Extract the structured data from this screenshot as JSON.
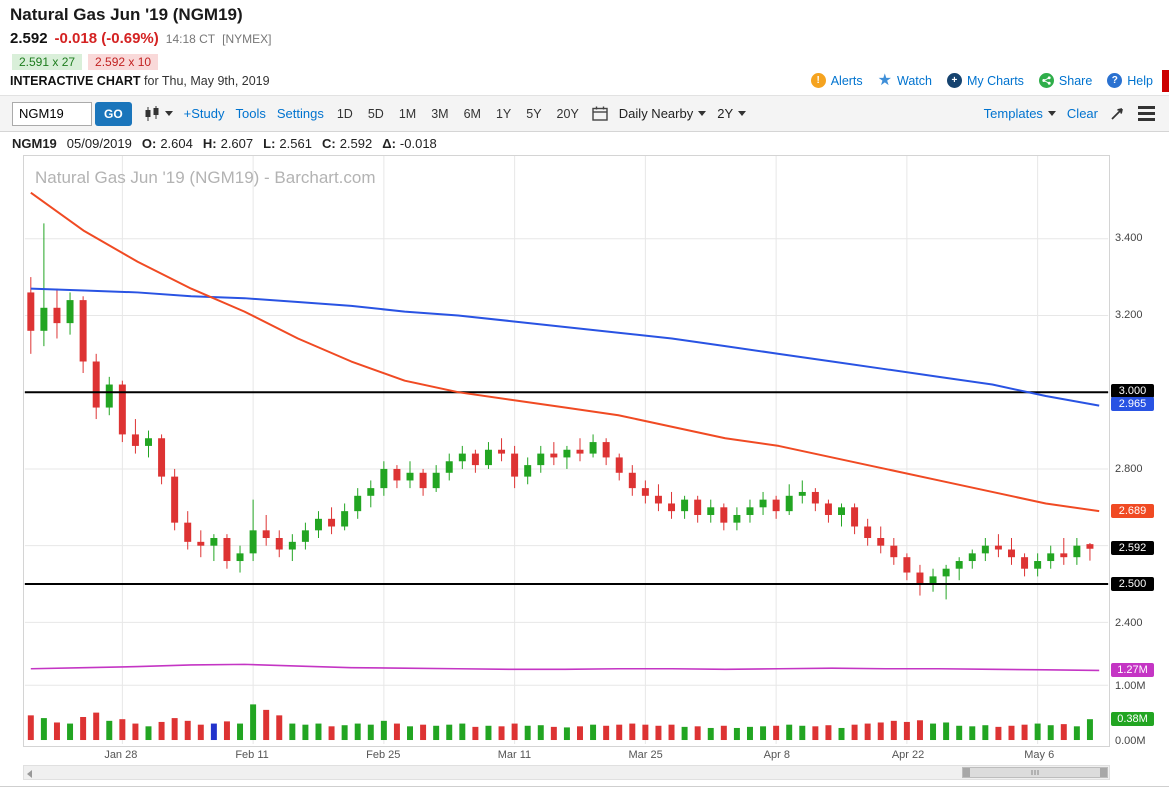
{
  "header": {
    "title": "Natural Gas Jun '19 (NGM19)",
    "last_price": "2.592",
    "change": "-0.018 (-0.69%)",
    "time": "14:18 CT",
    "exchange": "[NYMEX]",
    "bid": "2.591 x 27",
    "ask": "2.592 x 10",
    "chart_label": "INTERACTIVE CHART",
    "chart_date": " for Thu, May 9th, 2019",
    "links": [
      {
        "label": "Alerts",
        "icon": "alert-icon",
        "glyph": "!"
      },
      {
        "label": "Watch",
        "icon": "star-icon",
        "glyph": "★"
      },
      {
        "label": "My Charts",
        "icon": "plus-circle-icon",
        "glyph": "+"
      },
      {
        "label": "Share",
        "icon": "share-icon",
        "glyph": ""
      },
      {
        "label": "Help",
        "icon": "help-icon",
        "glyph": "?"
      }
    ]
  },
  "toolbar": {
    "symbol_value": "NGM19",
    "go_label": "GO",
    "links": [
      "+Study",
      "Tools",
      "Settings"
    ],
    "periods": [
      "1D",
      "5D",
      "1M",
      "3M",
      "6M",
      "1Y",
      "5Y",
      "20Y"
    ],
    "frequency": "Daily Nearby",
    "range": "2Y",
    "templates_label": "Templates",
    "clear_label": "Clear"
  },
  "quote_bar": {
    "symbol": "NGM19",
    "date": "05/09/2019",
    "fields": [
      {
        "label": "O:",
        "value": "2.604"
      },
      {
        "label": "H:",
        "value": "2.607"
      },
      {
        "label": "L:",
        "value": "2.561"
      },
      {
        "label": "C:",
        "value": "2.592"
      },
      {
        "label": "Δ:",
        "value": "-0.018"
      }
    ]
  },
  "chart_data": {
    "type": "candlestick",
    "title": "Natural Gas Jun '19 (NGM19) - Barchart.com",
    "symbol": "NGM19",
    "price_axis_range": [
      2.35,
      3.62
    ],
    "volume_axis_range_m": [
      0,
      1.6
    ],
    "price_axis_gridlines": [
      3.4,
      3.2,
      3.0,
      2.8,
      2.6,
      2.4
    ],
    "support_lines": [
      3.0,
      2.5
    ],
    "x_ticks": [
      {
        "label": "Jan 28",
        "index": 7
      },
      {
        "label": "Feb 11",
        "index": 17
      },
      {
        "label": "Feb 25",
        "index": 27
      },
      {
        "label": "Mar 11",
        "index": 37
      },
      {
        "label": "Mar 25",
        "index": 47
      },
      {
        "label": "Apr 8",
        "index": 57
      },
      {
        "label": "Apr 22",
        "index": 67
      },
      {
        "label": "May 6",
        "index": 77
      }
    ],
    "y_ticks": [
      {
        "label": "3.400",
        "scale": "price",
        "value": 3.4
      },
      {
        "label": "3.200",
        "scale": "price",
        "value": 3.2
      },
      {
        "label": "2.800",
        "scale": "price",
        "value": 2.8
      },
      {
        "label": "2.400",
        "scale": "price",
        "value": 2.4
      },
      {
        "label": "1.00M",
        "scale": "volume",
        "value": 1.0
      },
      {
        "label": "0.00M",
        "scale": "volume",
        "value": 0.0
      }
    ],
    "badges": [
      {
        "label": "3.000",
        "scale": "price",
        "value": 3.0,
        "color": "#000000"
      },
      {
        "label": "2.965",
        "scale": "price",
        "value": 2.965,
        "color": "#2953e3"
      },
      {
        "label": "2.689",
        "scale": "price",
        "value": 2.689,
        "color": "#f04a23"
      },
      {
        "label": "2.592",
        "scale": "price",
        "value": 2.592,
        "color": "#000000"
      },
      {
        "label": "2.500",
        "scale": "price",
        "value": 2.5,
        "color": "#000000"
      },
      {
        "label": "1.27M",
        "scale": "volume",
        "value": 1.27,
        "color": "#c435c4"
      },
      {
        "label": "0.38M",
        "scale": "volume",
        "value": 0.38,
        "color": "#22a522"
      }
    ],
    "colors": {
      "up": "#22a522",
      "down": "#dd3333",
      "ma_red": "#f04a23",
      "ma_blue": "#2953e3",
      "open_interest": "#c435c4",
      "support": "#000000",
      "grid": "#e7e7e7"
    },
    "candles_ohlc": [
      [
        3.26,
        3.3,
        3.1,
        3.16
      ],
      [
        3.16,
        3.44,
        3.12,
        3.22
      ],
      [
        3.22,
        3.27,
        3.14,
        3.18
      ],
      [
        3.18,
        3.26,
        3.15,
        3.24
      ],
      [
        3.24,
        3.25,
        3.05,
        3.08
      ],
      [
        3.08,
        3.1,
        2.93,
        2.96
      ],
      [
        2.96,
        3.04,
        2.94,
        3.02
      ],
      [
        3.02,
        3.03,
        2.87,
        2.89
      ],
      [
        2.89,
        2.93,
        2.84,
        2.86
      ],
      [
        2.86,
        2.9,
        2.83,
        2.88
      ],
      [
        2.88,
        2.89,
        2.76,
        2.78
      ],
      [
        2.78,
        2.8,
        2.64,
        2.66
      ],
      [
        2.66,
        2.69,
        2.59,
        2.61
      ],
      [
        2.61,
        2.64,
        2.57,
        2.6
      ],
      [
        2.6,
        2.63,
        2.56,
        2.62
      ],
      [
        2.62,
        2.63,
        2.54,
        2.56
      ],
      [
        2.56,
        2.6,
        2.53,
        2.58
      ],
      [
        2.58,
        2.72,
        2.56,
        2.64
      ],
      [
        2.64,
        2.68,
        2.6,
        2.62
      ],
      [
        2.62,
        2.64,
        2.57,
        2.59
      ],
      [
        2.59,
        2.63,
        2.56,
        2.61
      ],
      [
        2.61,
        2.66,
        2.59,
        2.64
      ],
      [
        2.64,
        2.69,
        2.62,
        2.67
      ],
      [
        2.67,
        2.7,
        2.63,
        2.65
      ],
      [
        2.65,
        2.71,
        2.64,
        2.69
      ],
      [
        2.69,
        2.75,
        2.67,
        2.73
      ],
      [
        2.73,
        2.77,
        2.7,
        2.75
      ],
      [
        2.75,
        2.82,
        2.73,
        2.8
      ],
      [
        2.8,
        2.81,
        2.75,
        2.77
      ],
      [
        2.77,
        2.82,
        2.75,
        2.79
      ],
      [
        2.79,
        2.8,
        2.73,
        2.75
      ],
      [
        2.75,
        2.81,
        2.74,
        2.79
      ],
      [
        2.79,
        2.84,
        2.77,
        2.82
      ],
      [
        2.82,
        2.86,
        2.8,
        2.84
      ],
      [
        2.84,
        2.85,
        2.79,
        2.81
      ],
      [
        2.81,
        2.87,
        2.8,
        2.85
      ],
      [
        2.85,
        2.88,
        2.82,
        2.84
      ],
      [
        2.84,
        2.86,
        2.75,
        2.78
      ],
      [
        2.78,
        2.83,
        2.76,
        2.81
      ],
      [
        2.81,
        2.86,
        2.79,
        2.84
      ],
      [
        2.84,
        2.87,
        2.81,
        2.83
      ],
      [
        2.83,
        2.86,
        2.8,
        2.85
      ],
      [
        2.85,
        2.88,
        2.82,
        2.84
      ],
      [
        2.84,
        2.89,
        2.83,
        2.87
      ],
      [
        2.87,
        2.88,
        2.81,
        2.83
      ],
      [
        2.83,
        2.84,
        2.77,
        2.79
      ],
      [
        2.79,
        2.81,
        2.73,
        2.75
      ],
      [
        2.75,
        2.77,
        2.71,
        2.73
      ],
      [
        2.73,
        2.76,
        2.69,
        2.71
      ],
      [
        2.71,
        2.74,
        2.67,
        2.69
      ],
      [
        2.69,
        2.73,
        2.67,
        2.72
      ],
      [
        2.72,
        2.73,
        2.66,
        2.68
      ],
      [
        2.68,
        2.72,
        2.66,
        2.7
      ],
      [
        2.7,
        2.71,
        2.64,
        2.66
      ],
      [
        2.66,
        2.7,
        2.64,
        2.68
      ],
      [
        2.68,
        2.72,
        2.66,
        2.7
      ],
      [
        2.7,
        2.74,
        2.68,
        2.72
      ],
      [
        2.72,
        2.73,
        2.67,
        2.69
      ],
      [
        2.69,
        2.76,
        2.68,
        2.73
      ],
      [
        2.73,
        2.77,
        2.71,
        2.74
      ],
      [
        2.74,
        2.75,
        2.69,
        2.71
      ],
      [
        2.71,
        2.72,
        2.66,
        2.68
      ],
      [
        2.68,
        2.71,
        2.65,
        2.7
      ],
      [
        2.7,
        2.71,
        2.63,
        2.65
      ],
      [
        2.65,
        2.67,
        2.6,
        2.62
      ],
      [
        2.62,
        2.65,
        2.58,
        2.6
      ],
      [
        2.6,
        2.62,
        2.55,
        2.57
      ],
      [
        2.57,
        2.58,
        2.51,
        2.53
      ],
      [
        2.53,
        2.55,
        2.47,
        2.5
      ],
      [
        2.5,
        2.54,
        2.48,
        2.52
      ],
      [
        2.52,
        2.55,
        2.46,
        2.54
      ],
      [
        2.54,
        2.57,
        2.51,
        2.56
      ],
      [
        2.56,
        2.59,
        2.54,
        2.58
      ],
      [
        2.58,
        2.62,
        2.56,
        2.6
      ],
      [
        2.6,
        2.63,
        2.57,
        2.59
      ],
      [
        2.59,
        2.62,
        2.55,
        2.57
      ],
      [
        2.57,
        2.58,
        2.52,
        2.54
      ],
      [
        2.54,
        2.58,
        2.52,
        2.56
      ],
      [
        2.56,
        2.6,
        2.54,
        2.58
      ],
      [
        2.58,
        2.62,
        2.55,
        2.57
      ],
      [
        2.57,
        2.62,
        2.55,
        2.6
      ],
      [
        2.604,
        2.607,
        2.561,
        2.592
      ]
    ],
    "volume_m": [
      0.45,
      0.4,
      0.32,
      0.3,
      0.42,
      0.5,
      0.35,
      0.38,
      0.3,
      0.25,
      0.33,
      0.4,
      0.35,
      0.28,
      0.3,
      0.34,
      0.3,
      0.65,
      0.55,
      0.45,
      0.3,
      0.28,
      0.3,
      0.25,
      0.27,
      0.3,
      0.28,
      0.35,
      0.3,
      0.25,
      0.28,
      0.26,
      0.28,
      0.3,
      0.24,
      0.26,
      0.25,
      0.3,
      0.26,
      0.27,
      0.24,
      0.23,
      0.25,
      0.28,
      0.26,
      0.28,
      0.3,
      0.28,
      0.26,
      0.28,
      0.24,
      0.25,
      0.22,
      0.26,
      0.22,
      0.24,
      0.25,
      0.26,
      0.28,
      0.26,
      0.25,
      0.27,
      0.22,
      0.28,
      0.3,
      0.32,
      0.35,
      0.33,
      0.36,
      0.3,
      0.32,
      0.26,
      0.25,
      0.27,
      0.24,
      0.26,
      0.28,
      0.3,
      0.27,
      0.29,
      0.25,
      0.38
    ],
    "special_volume_colors": {
      "14": "#2233cc",
      "81": "#22a522"
    },
    "ma_red": [
      3.52,
      3.42,
      3.34,
      3.27,
      3.21,
      3.14,
      3.08,
      3.03,
      3.0,
      2.98,
      2.96,
      2.94,
      2.91,
      2.88,
      2.86,
      2.83,
      2.8,
      2.77,
      2.74,
      2.71,
      2.69
    ],
    "ma_blue": [
      3.27,
      3.265,
      3.26,
      3.25,
      3.245,
      3.235,
      3.225,
      3.21,
      3.2,
      3.185,
      3.17,
      3.155,
      3.14,
      3.12,
      3.1,
      3.08,
      3.06,
      3.04,
      3.02,
      2.99,
      2.965
    ],
    "open_interest_m": [
      1.3,
      1.32,
      1.34,
      1.37,
      1.38,
      1.35,
      1.32,
      1.31,
      1.3,
      1.29,
      1.29,
      1.3,
      1.3,
      1.29,
      1.3,
      1.31,
      1.3,
      1.3,
      1.29,
      1.28,
      1.27
    ],
    "last_price": 2.592,
    "last_volume_m": 0.38,
    "last_open_interest_m": 1.27
  }
}
